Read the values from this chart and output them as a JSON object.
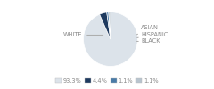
{
  "labels": [
    "WHITE",
    "ASIAN",
    "HISPANIC",
    "BLACK"
  ],
  "values": [
    93.3,
    4.4,
    1.1,
    1.1
  ],
  "colors": [
    "#dce3ea",
    "#1e3a5f",
    "#4a7ba7",
    "#b8c4ce"
  ],
  "legend_colors": [
    "#dce3ea",
    "#1e3a5f",
    "#4a7ba7",
    "#b8c4ce"
  ],
  "legend_labels": [
    "93.3%",
    "4.4%",
    "1.1%",
    "1.1%"
  ],
  "bg_color": "#ffffff",
  "label_fontsize": 4.8,
  "legend_fontsize": 4.8,
  "text_color": "#888888"
}
